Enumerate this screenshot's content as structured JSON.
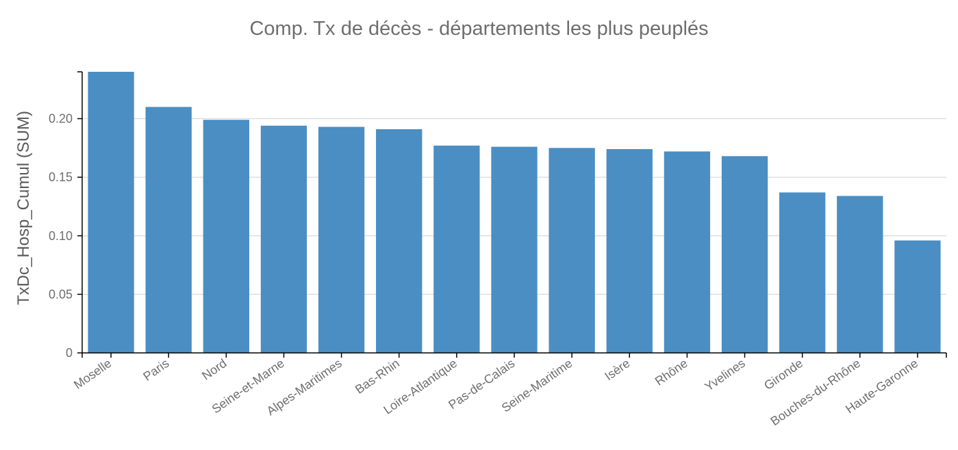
{
  "chart_data": {
    "type": "bar",
    "title": "Comp. Tx de décès - départements les plus peuplés",
    "xlabel": "",
    "ylabel": "TxDc_Hosp_Cumul (SUM)",
    "categories": [
      "Moselle",
      "Paris",
      "Nord",
      "Seine-et-Marne",
      "Alpes-Maritimes",
      "Bas-Rhin",
      "Loire-Atlantique",
      "Pas-de-Calais",
      "Seine-Maritime",
      "Isère",
      "Rhône",
      "Yvelines",
      "Gironde",
      "Bouches-du-Rhône",
      "Haute-Garonne"
    ],
    "values": [
      0.24,
      0.21,
      0.199,
      0.194,
      0.193,
      0.191,
      0.177,
      0.176,
      0.175,
      0.174,
      0.172,
      0.168,
      0.137,
      0.134,
      0.096
    ],
    "ylim": [
      0,
      0.24
    ],
    "yticks": [
      0,
      0.05,
      0.1,
      0.15,
      0.2
    ],
    "ytick_labels": [
      "0",
      "0.05",
      "0.10",
      "0.15",
      "0.20"
    ],
    "grid": true,
    "legend": "none",
    "colors": {
      "bar": "#4a8ec3",
      "grid": "#d9d9d9",
      "axis": "#000000",
      "text": "#6e6e6e"
    }
  }
}
